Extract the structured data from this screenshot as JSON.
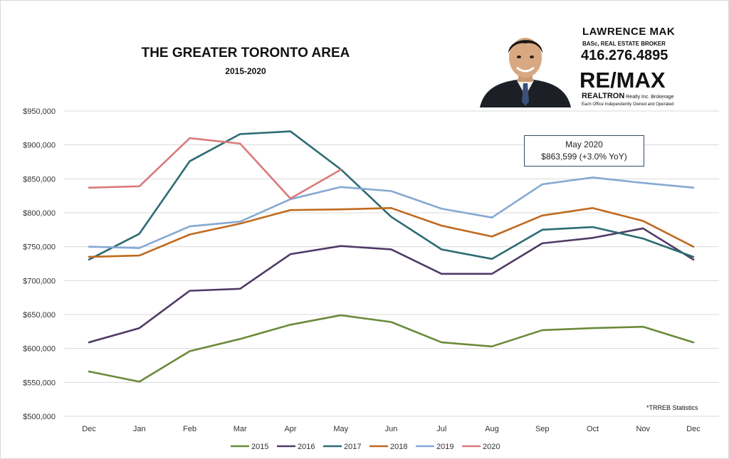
{
  "title": "THE GREATER TORONTO AREA",
  "subtitle": "2015-2020",
  "source_note": "*TRREB Statistics",
  "callout": {
    "line1": "May 2020",
    "line2": "$863,599  (+3.0% YoY)"
  },
  "advert": {
    "name": "LAWRENCE MAK",
    "credentials": "BASc, REAL ESTATE BROKER",
    "phone": "416.276.4895",
    "brand": "RE/MAX",
    "brokerage_bold": "REALTRON",
    "brokerage_rest": " Realty Inc. Brokerage",
    "office_note": "Each Office Independently Owned and Operated"
  },
  "chart_data": {
    "type": "line",
    "title": "THE GREATER TORONTO AREA",
    "subtitle": "2015-2020",
    "xlabel": "",
    "ylabel": "",
    "categories": [
      "Dec",
      "Jan",
      "Feb",
      "Mar",
      "Apr",
      "May",
      "Jun",
      "Jul",
      "Aug",
      "Sep",
      "Oct",
      "Nov",
      "Dec"
    ],
    "ylim": [
      500000,
      950000
    ],
    "yticks": [
      500000,
      550000,
      600000,
      650000,
      700000,
      750000,
      800000,
      850000,
      900000,
      950000
    ],
    "ytick_labels": [
      "$500,000",
      "$550,000",
      "$600,000",
      "$650,000",
      "$700,000",
      "$750,000",
      "$800,000",
      "$850,000",
      "$900,000",
      "$950,000"
    ],
    "grid": true,
    "legend_position": "bottom",
    "series": [
      {
        "name": "2015",
        "color": "#6b8a3a",
        "values": [
          566000,
          551000,
          596000,
          614000,
          635000,
          649000,
          639000,
          609000,
          603000,
          627000,
          630000,
          632000,
          609000
        ]
      },
      {
        "name": "2016",
        "color": "#4f3a66",
        "values": [
          609000,
          630000,
          685000,
          688000,
          739000,
          751000,
          746000,
          710000,
          710000,
          755000,
          763000,
          777000,
          731000
        ]
      },
      {
        "name": "2017",
        "color": "#2d6b73",
        "values": [
          731000,
          769000,
          876000,
          916000,
          920000,
          864000,
          794000,
          746000,
          732000,
          775000,
          779000,
          762000,
          735000
        ]
      },
      {
        "name": "2018",
        "color": "#c06a1f",
        "values": [
          735000,
          737000,
          768000,
          784000,
          804000,
          805000,
          807000,
          781000,
          765000,
          796000,
          807000,
          788000,
          750000
        ]
      },
      {
        "name": "2019",
        "color": "#85a9d2",
        "values": [
          750000,
          748000,
          780000,
          787000,
          820000,
          838000,
          832000,
          806000,
          793000,
          842000,
          852000,
          844000,
          837000
        ]
      },
      {
        "name": "2020",
        "color": "#d9797a",
        "values": [
          837000,
          839000,
          910000,
          902000,
          821000,
          863599,
          null,
          null,
          null,
          null,
          null,
          null,
          null
        ]
      }
    ]
  }
}
